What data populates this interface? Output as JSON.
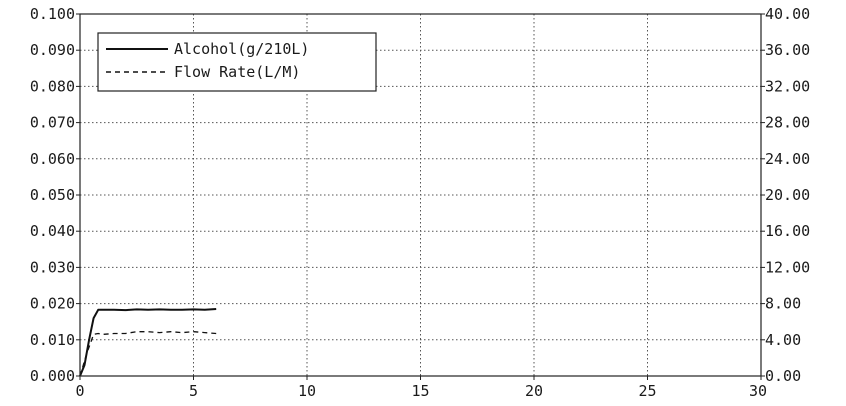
{
  "chart_data": {
    "type": "line",
    "title": "",
    "xlabel": "",
    "ylabel": "",
    "y2label": "",
    "xlim": [
      0,
      30
    ],
    "ylim": [
      0,
      0.1
    ],
    "y2lim": [
      0,
      40
    ],
    "grid": true,
    "legend_position": "top-left",
    "x_ticks": [
      "0",
      "5",
      "10",
      "15",
      "20",
      "25",
      "30"
    ],
    "y_ticks": [
      "0.000",
      "0.010",
      "0.020",
      "0.030",
      "0.040",
      "0.050",
      "0.060",
      "0.070",
      "0.080",
      "0.090",
      "0.100"
    ],
    "y2_ticks": [
      "0.00",
      "4.00",
      "8.00",
      "12.00",
      "16.00",
      "20.00",
      "24.00",
      "28.00",
      "32.00",
      "36.00",
      "40.00"
    ],
    "series": [
      {
        "name": "Alcohol(g/210L)",
        "axis": "left",
        "style": "solid",
        "color": "#111111",
        "x": [
          0,
          0.2,
          0.4,
          0.6,
          0.8,
          1.0,
          1.5,
          2.0,
          2.5,
          3.0,
          3.5,
          4.0,
          4.5,
          5.0,
          5.5,
          6.0
        ],
        "y": [
          0.0,
          0.003,
          0.01,
          0.016,
          0.0183,
          0.0183,
          0.0183,
          0.0182,
          0.0184,
          0.0183,
          0.0184,
          0.0183,
          0.0183,
          0.0184,
          0.0183,
          0.0185
        ]
      },
      {
        "name": "Flow Rate(L/M)",
        "axis": "right",
        "style": "dashed",
        "color": "#111111",
        "x": [
          0,
          0.3,
          0.6,
          0.8,
          1.0,
          1.5,
          2.0,
          2.5,
          3.0,
          3.5,
          4.0,
          4.5,
          5.0,
          5.5,
          6.0
        ],
        "y": [
          0.0,
          2.5,
          4.6,
          4.7,
          4.6,
          4.7,
          4.7,
          4.9,
          4.9,
          4.8,
          4.9,
          4.8,
          4.9,
          4.8,
          4.7
        ]
      }
    ]
  }
}
